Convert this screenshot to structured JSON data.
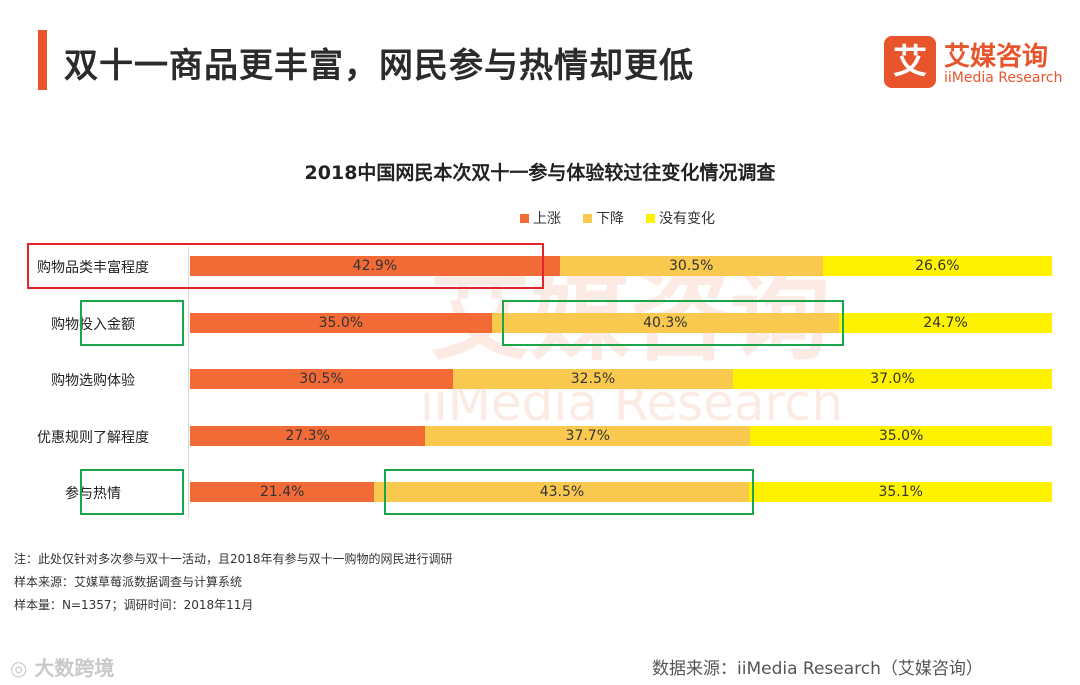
{
  "header": {
    "title": "双十一商品更丰富，网民参与热情却更低",
    "logo_glyph": "艾",
    "logo_cn": "艾媒咨询",
    "logo_en": "iiMedia Research"
  },
  "watermark": {
    "cn": "艾媒咨询",
    "en": "iiMedia Research"
  },
  "colors": {
    "brand": "#e8552d",
    "up": "#f26a36",
    "down": "#f9c94f",
    "nochange": "#fff200",
    "highlight_red": "#e0262c",
    "highlight_green": "#1aa54a"
  },
  "chart_data": {
    "type": "bar",
    "orientation": "horizontal",
    "stacked": true,
    "normalized": true,
    "title": "2018中国网民本次双十一参与体验较过往变化情况调查",
    "legend_position": "top",
    "categories": [
      "购物品类丰富程度",
      "购物投入金额",
      "购物选购体验",
      "优惠规则了解程度",
      "参与热情"
    ],
    "series": [
      {
        "name": "上涨",
        "values": [
          42.9,
          35.0,
          30.5,
          27.3,
          21.4
        ],
        "labels": [
          "42.9%",
          "35.0%",
          "30.5%",
          "27.3%",
          "21.4%"
        ]
      },
      {
        "name": "下降",
        "values": [
          30.5,
          40.3,
          32.5,
          37.7,
          43.5
        ],
        "labels": [
          "30.5%",
          "40.3%",
          "32.5%",
          "37.7%",
          "43.5%"
        ]
      },
      {
        "name": "没有变化",
        "values": [
          26.6,
          24.7,
          37.0,
          35.0,
          35.1
        ],
        "labels": [
          "26.6%",
          "24.7%",
          "37.0%",
          "35.0%",
          "35.1%"
        ]
      }
    ],
    "highlights": [
      {
        "category": "购物品类丰富程度",
        "series": "上涨",
        "color": "red"
      },
      {
        "category": "购物投入金额",
        "series": "下降",
        "color": "green"
      },
      {
        "category": "参与热情",
        "series": "下降",
        "color": "green"
      }
    ]
  },
  "notes": [
    "注：此处仅针对多次参与双十一活动，且2018年有参与双十一购物的网民进行调研",
    "样本来源：艾媒草莓派数据调查与计算系统",
    "样本量：N=1357；调研时间：2018年11月"
  ],
  "footer": {
    "weibo_label": "大数跨境",
    "source": "数据来源：iiMedia Research（艾媒咨询）"
  }
}
